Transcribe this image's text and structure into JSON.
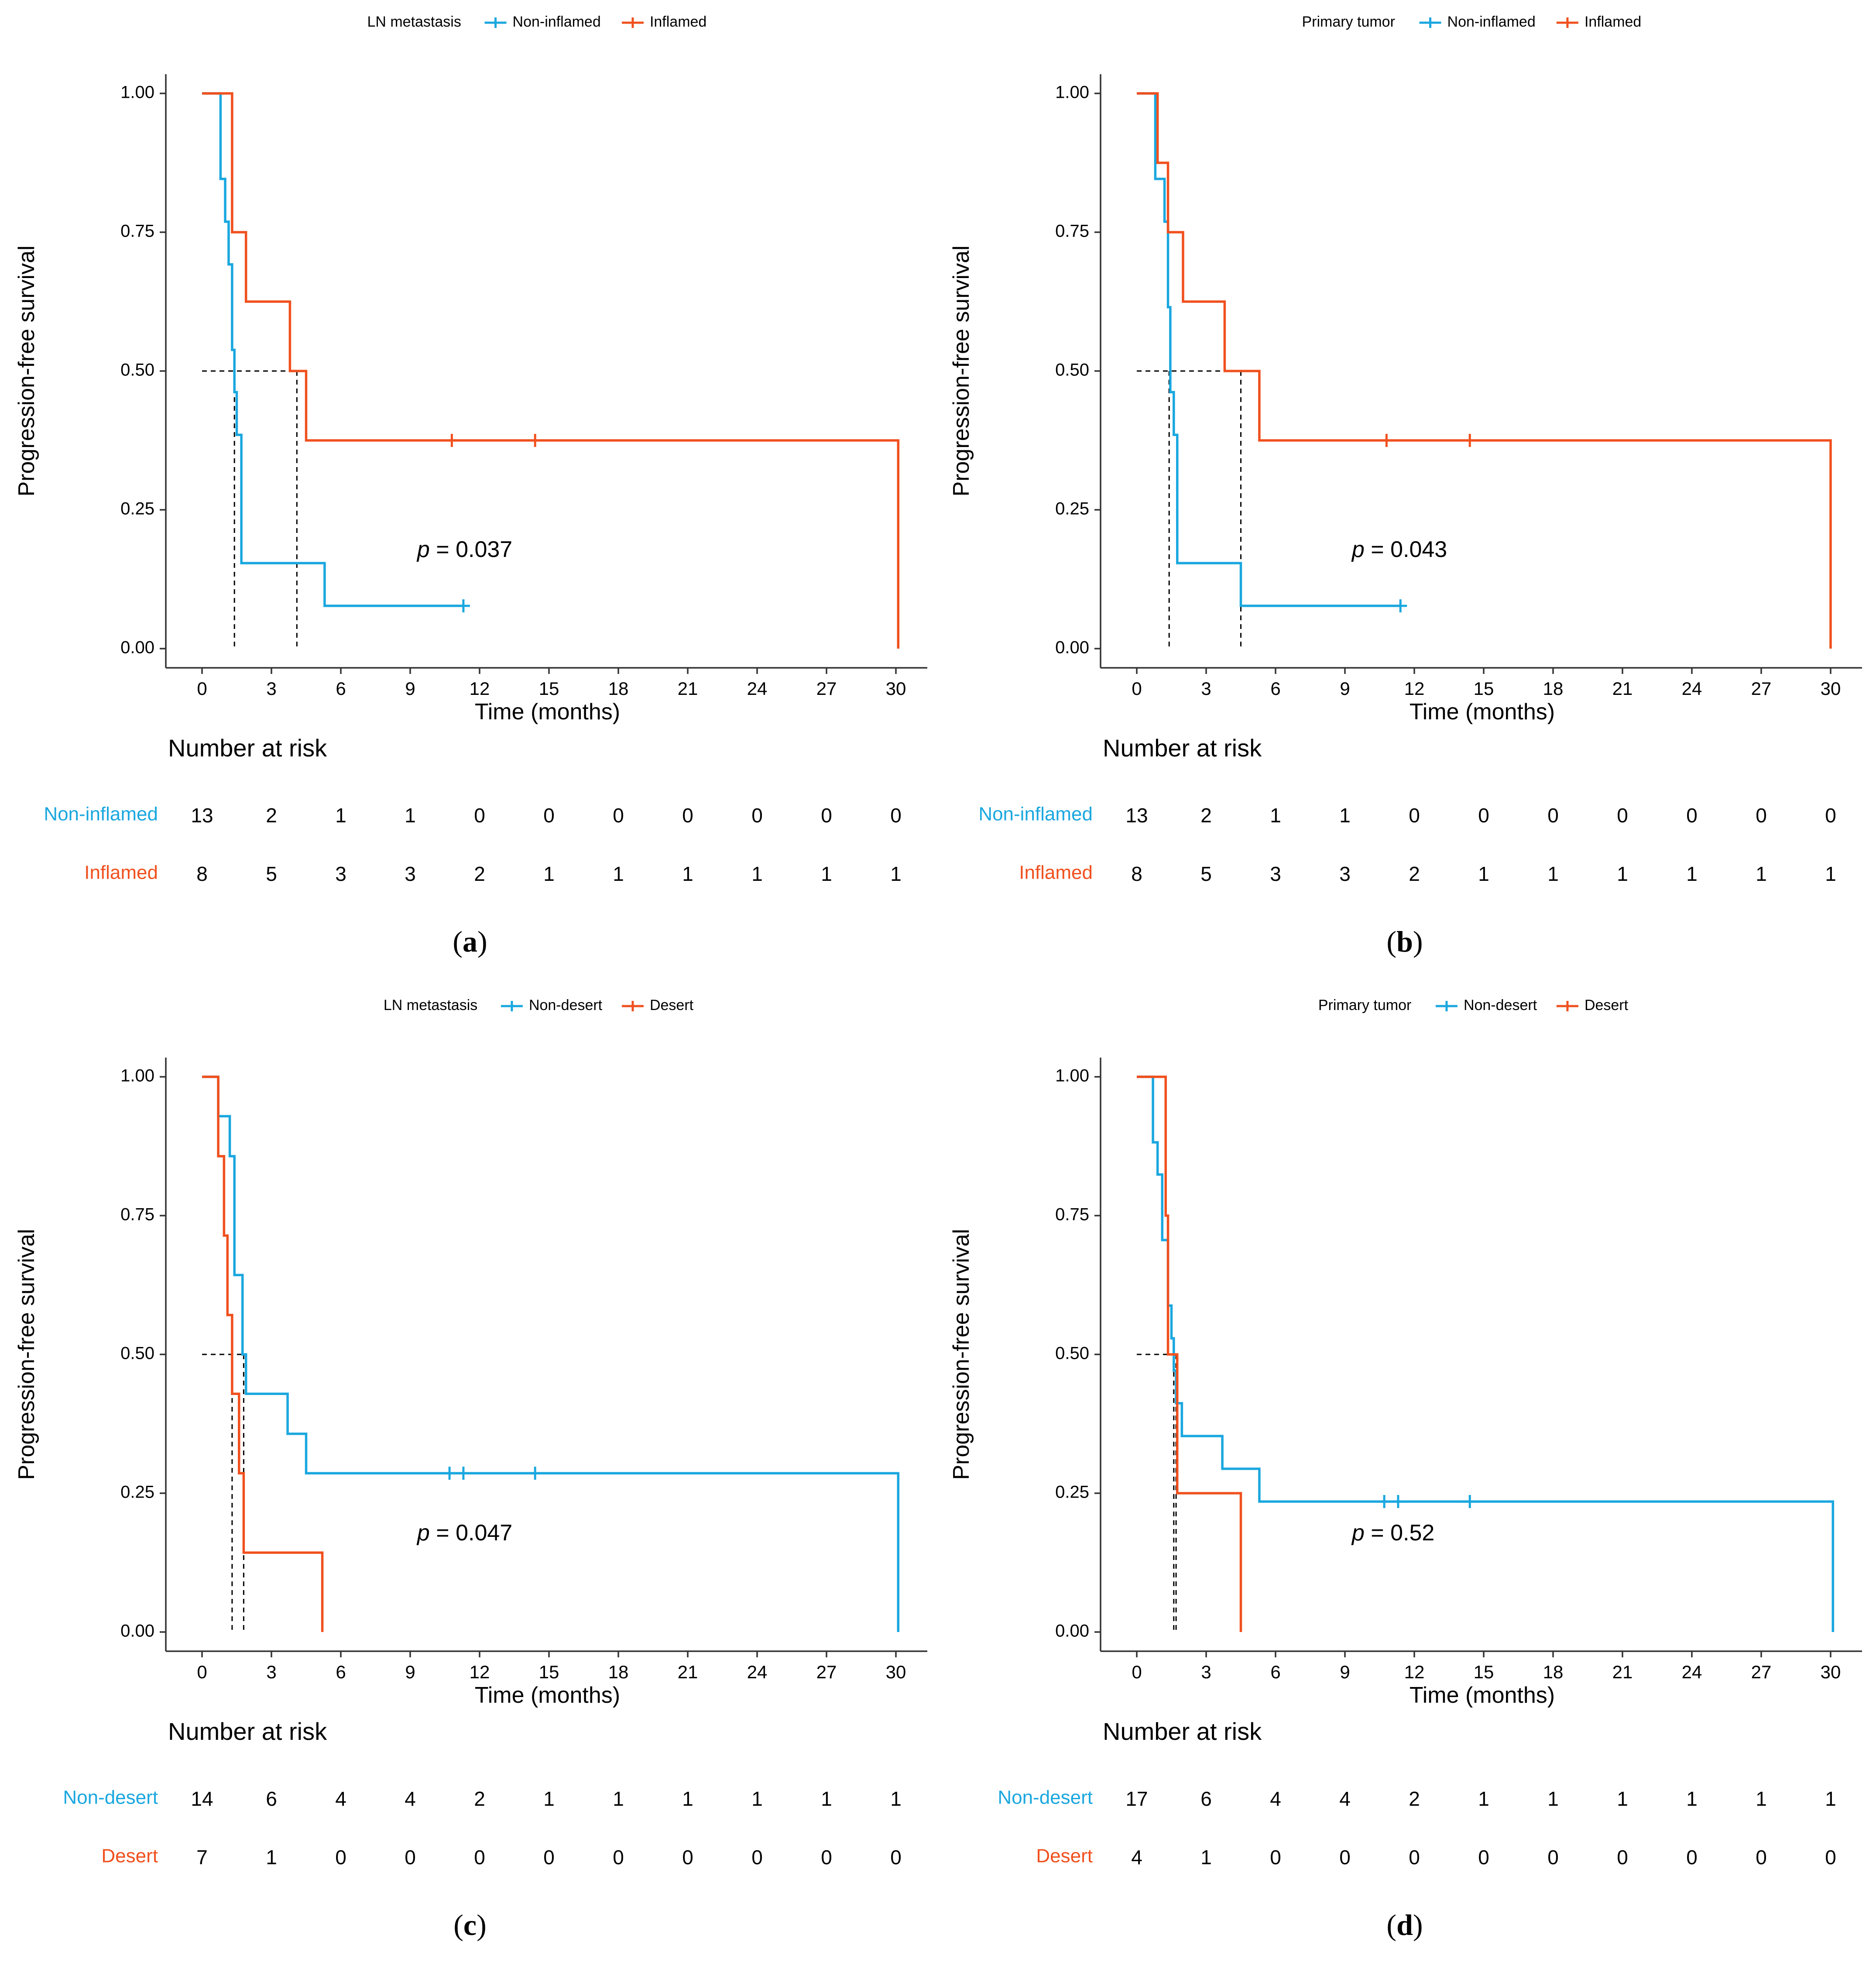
{
  "colors": {
    "non": "#1AA7DF",
    "alt": "#F0501E",
    "ink": "#000000",
    "axis": "#333333"
  },
  "axis_labels": {
    "x": "Time (months)",
    "y": "Progression-free survival"
  },
  "risk_title": "Number at risk",
  "chart_data": [
    {
      "type": "line",
      "caption": {
        "letter": "a",
        "open": "(",
        "close": ")"
      },
      "legend": {
        "title": "LN metastasis",
        "labels": [
          "Non-inflamed",
          "Inflamed"
        ]
      },
      "pvalue": {
        "prefix": "p",
        "text": " = 0.037"
      },
      "xlim": [
        0,
        30
      ],
      "ylim": [
        0,
        1
      ],
      "xticks": [
        "0",
        "3",
        "6",
        "9",
        "12",
        "15",
        "18",
        "21",
        "24",
        "27",
        "30"
      ],
      "yticks": [
        "0.00",
        "0.25",
        "0.50",
        "0.75",
        "1.00"
      ],
      "median_x": [
        1.4,
        4.1
      ],
      "series": [
        {
          "name": "Non-inflamed",
          "steps": [
            [
              0.7,
              1.0
            ],
            [
              0.8,
              0.846
            ],
            [
              1.0,
              0.769
            ],
            [
              1.15,
              0.692
            ],
            [
              1.3,
              0.538
            ],
            [
              1.4,
              0.462
            ],
            [
              1.5,
              0.385
            ],
            [
              1.7,
              0.154
            ],
            [
              5.3,
              0.077
            ],
            [
              11.3,
              0.077
            ]
          ],
          "censor": [
            11.3
          ]
        },
        {
          "name": "Inflamed",
          "steps": [
            [
              0,
              1.0
            ],
            [
              1.3,
              0.75
            ],
            [
              1.9,
              0.625
            ],
            [
              3.8,
              0.5
            ],
            [
              4.5,
              0.375
            ],
            [
              30.1,
              0.0
            ]
          ],
          "censor": [
            10.8,
            14.4
          ]
        }
      ],
      "risk_table": [
        {
          "name": "Non-inflamed",
          "values": [
            "13",
            "2",
            "1",
            "1",
            "0",
            "0",
            "0",
            "0",
            "0",
            "0",
            "0"
          ]
        },
        {
          "name": "Inflamed",
          "values": [
            "8",
            "5",
            "3",
            "3",
            "2",
            "1",
            "1",
            "1",
            "1",
            "1",
            "1"
          ]
        }
      ]
    },
    {
      "type": "line",
      "caption": {
        "letter": "b",
        "open": "(",
        "close": ")"
      },
      "legend": {
        "title": "Primary tumor",
        "labels": [
          "Non-inflamed",
          "Inflamed"
        ]
      },
      "pvalue": {
        "prefix": "p",
        "text": " = 0.043"
      },
      "xlim": [
        0,
        30
      ],
      "ylim": [
        0,
        1
      ],
      "xticks": [
        "0",
        "3",
        "6",
        "9",
        "12",
        "15",
        "18",
        "21",
        "24",
        "27",
        "30"
      ],
      "yticks": [
        "0.00",
        "0.25",
        "0.50",
        "0.75",
        "1.00"
      ],
      "median_x": [
        1.4,
        4.5
      ],
      "series": [
        {
          "name": "Non-inflamed",
          "steps": [
            [
              0.7,
              1.0
            ],
            [
              0.8,
              0.846
            ],
            [
              1.2,
              0.769
            ],
            [
              1.35,
              0.615
            ],
            [
              1.45,
              0.462
            ],
            [
              1.6,
              0.385
            ],
            [
              1.75,
              0.154
            ],
            [
              4.5,
              0.077
            ],
            [
              11.4,
              0.077
            ]
          ],
          "censor": [
            11.4
          ]
        },
        {
          "name": "Inflamed",
          "steps": [
            [
              0,
              1.0
            ],
            [
              0.9,
              0.875
            ],
            [
              1.35,
              0.75
            ],
            [
              2.0,
              0.625
            ],
            [
              3.8,
              0.5
            ],
            [
              5.3,
              0.375
            ],
            [
              30.0,
              0.0
            ]
          ],
          "censor": [
            10.8,
            14.4
          ]
        }
      ],
      "risk_table": [
        {
          "name": "Non-inflamed",
          "values": [
            "13",
            "2",
            "1",
            "1",
            "0",
            "0",
            "0",
            "0",
            "0",
            "0",
            "0"
          ]
        },
        {
          "name": "Inflamed",
          "values": [
            "8",
            "5",
            "3",
            "3",
            "2",
            "1",
            "1",
            "1",
            "1",
            "1",
            "1"
          ]
        }
      ]
    },
    {
      "type": "line",
      "caption": {
        "letter": "c",
        "open": "(",
        "close": ")"
      },
      "legend": {
        "title": "LN metastasis",
        "labels": [
          "Non-desert",
          "Desert"
        ]
      },
      "pvalue": {
        "prefix": "p",
        "text": " = 0.047"
      },
      "xlim": [
        0,
        30
      ],
      "ylim": [
        0,
        1
      ],
      "xticks": [
        "0",
        "3",
        "6",
        "9",
        "12",
        "15",
        "18",
        "21",
        "24",
        "27",
        "30"
      ],
      "yticks": [
        "0.00",
        "0.25",
        "0.50",
        "0.75",
        "1.00"
      ],
      "median_x": [
        1.3,
        1.8
      ],
      "series": [
        {
          "name": "Non-desert",
          "steps": [
            [
              0.7,
              0.929
            ],
            [
              1.2,
              0.857
            ],
            [
              1.4,
              0.643
            ],
            [
              1.75,
              0.5
            ],
            [
              1.9,
              0.429
            ],
            [
              3.7,
              0.357
            ],
            [
              4.5,
              0.286
            ],
            [
              30.1,
              0.0
            ]
          ],
          "censor": [
            10.7,
            11.3,
            14.4
          ]
        },
        {
          "name": "Desert",
          "steps": [
            [
              0,
              1.0
            ],
            [
              0.7,
              0.857
            ],
            [
              0.95,
              0.714
            ],
            [
              1.1,
              0.571
            ],
            [
              1.3,
              0.429
            ],
            [
              1.6,
              0.286
            ],
            [
              1.8,
              0.143
            ],
            [
              5.2,
              0.0
            ]
          ],
          "censor": []
        }
      ],
      "risk_table": [
        {
          "name": "Non-desert",
          "values": [
            "14",
            "6",
            "4",
            "4",
            "2",
            "1",
            "1",
            "1",
            "1",
            "1",
            "1"
          ]
        },
        {
          "name": "Desert",
          "values": [
            "7",
            "1",
            "0",
            "0",
            "0",
            "0",
            "0",
            "0",
            "0",
            "0",
            "0"
          ]
        }
      ]
    },
    {
      "type": "line",
      "caption": {
        "letter": "d",
        "open": "(",
        "close": ")"
      },
      "legend": {
        "title": "Primary tumor",
        "labels": [
          "Non-desert",
          "Desert"
        ]
      },
      "pvalue": {
        "prefix": "p",
        "text": " = 0.52"
      },
      "xlim": [
        0,
        30
      ],
      "ylim": [
        0,
        1
      ],
      "xticks": [
        "0",
        "3",
        "6",
        "9",
        "12",
        "15",
        "18",
        "21",
        "24",
        "27",
        "30"
      ],
      "yticks": [
        "0.00",
        "0.25",
        "0.50",
        "0.75",
        "1.00"
      ],
      "median_x": [
        1.6,
        1.7
      ],
      "series": [
        {
          "name": "Non-desert",
          "steps": [
            [
              0.7,
              0.882
            ],
            [
              0.9,
              0.824
            ],
            [
              1.1,
              0.706
            ],
            [
              1.35,
              0.588
            ],
            [
              1.5,
              0.529
            ],
            [
              1.6,
              0.471
            ],
            [
              1.7,
              0.412
            ],
            [
              1.95,
              0.353
            ],
            [
              3.7,
              0.294
            ],
            [
              5.3,
              0.235
            ],
            [
              30.1,
              0.0
            ]
          ],
          "censor": [
            10.7,
            11.3,
            14.4
          ]
        },
        {
          "name": "Desert",
          "steps": [
            [
              0,
              1.0
            ],
            [
              1.25,
              0.75
            ],
            [
              1.35,
              0.5
            ],
            [
              1.75,
              0.25
            ],
            [
              4.5,
              0.0
            ]
          ],
          "censor": []
        }
      ],
      "risk_table": [
        {
          "name": "Non-desert",
          "values": [
            "17",
            "6",
            "4",
            "4",
            "2",
            "1",
            "1",
            "1",
            "1",
            "1",
            "1"
          ]
        },
        {
          "name": "Desert",
          "values": [
            "4",
            "1",
            "0",
            "0",
            "0",
            "0",
            "0",
            "0",
            "0",
            "0",
            "0"
          ]
        }
      ]
    }
  ]
}
